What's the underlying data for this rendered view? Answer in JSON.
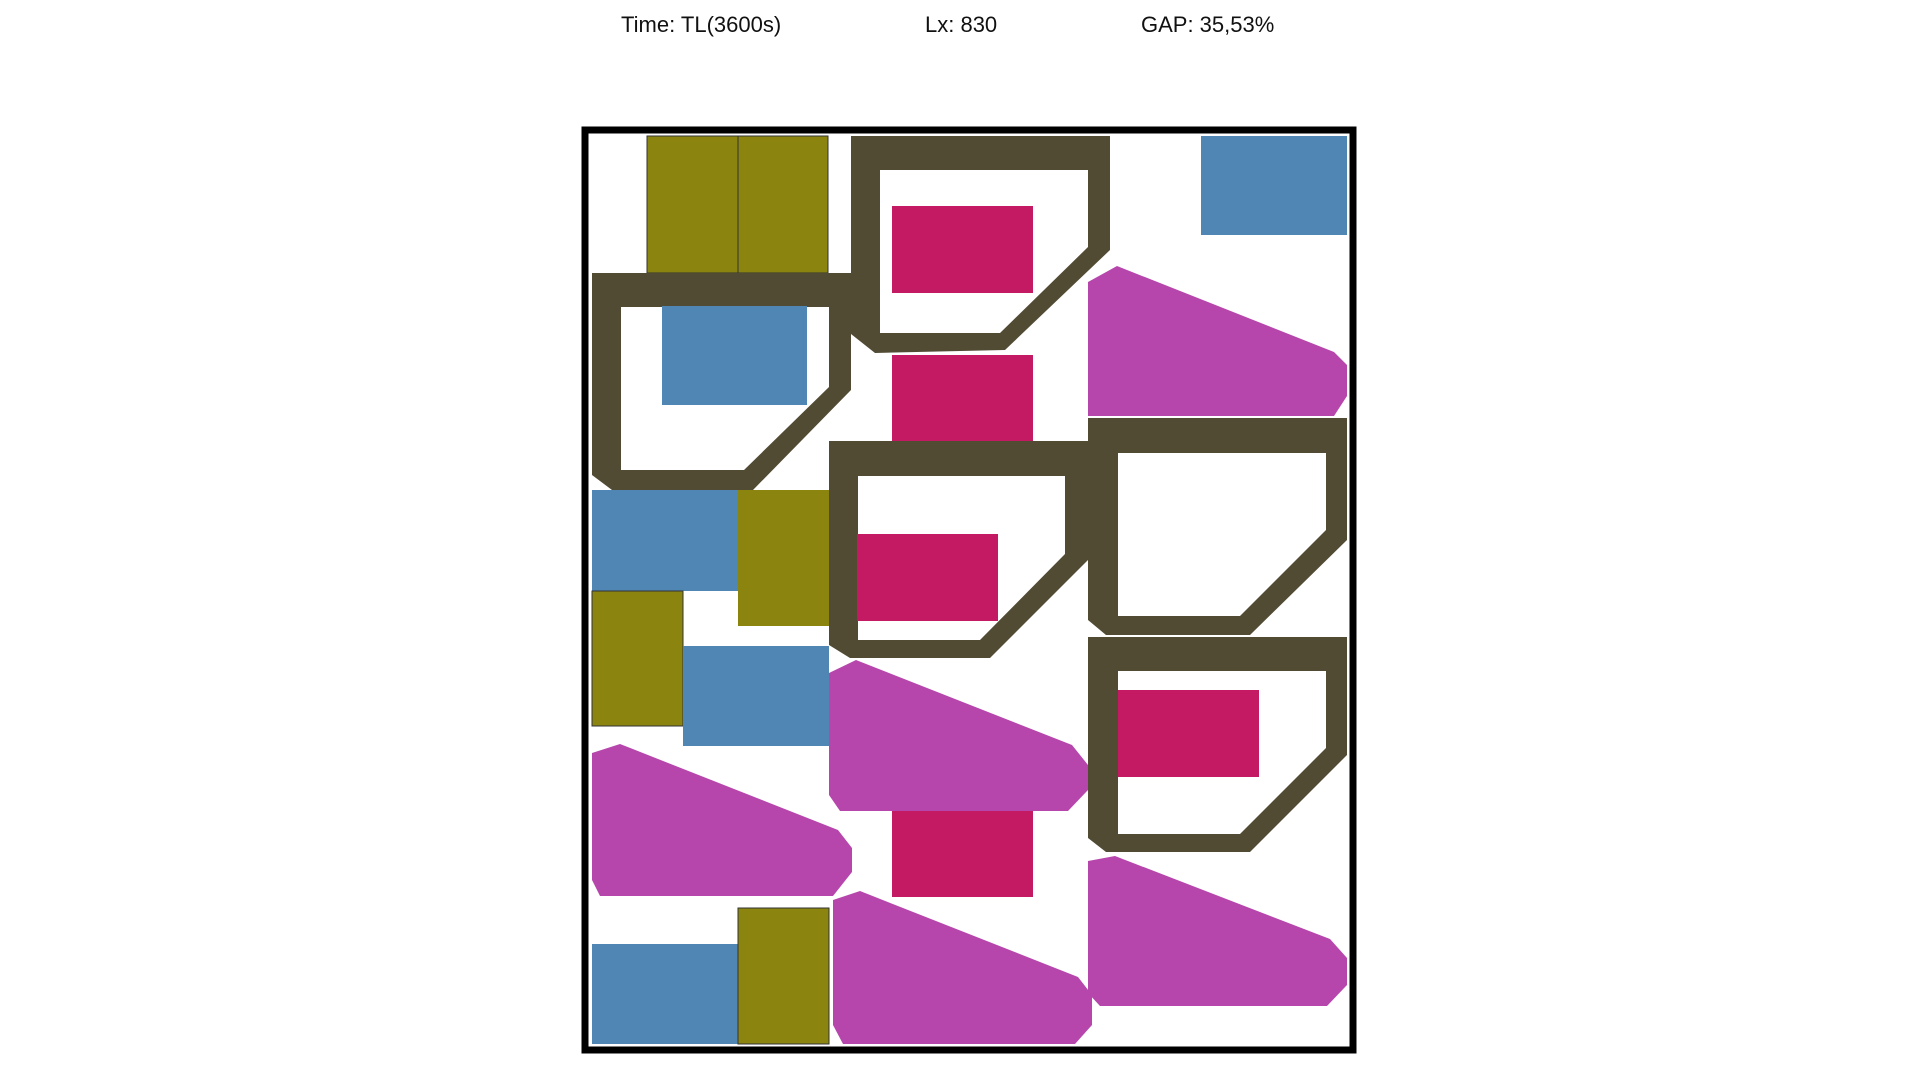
{
  "header": {
    "time_text": "Time: TL(3600s)",
    "lx_text": "Lx: 830",
    "gap_text": "GAP: 35,53%"
  },
  "colors": {
    "frame": "#000000",
    "olive": "#8b850f",
    "blue": "#4f86b4",
    "pink": "#c41a64",
    "purple": "#b746ac",
    "dark": "#514b34",
    "background": "#ffffff"
  },
  "pieces": [
    {
      "kind": "olive"
    },
    {
      "kind": "olive"
    },
    {
      "kind": "blue"
    },
    {
      "kind": "dark"
    },
    {
      "kind": "pink"
    },
    {
      "kind": "dark"
    },
    {
      "kind": "blue"
    },
    {
      "kind": "pink"
    },
    {
      "kind": "purple"
    },
    {
      "kind": "blue"
    },
    {
      "kind": "olive"
    },
    {
      "kind": "dark"
    },
    {
      "kind": "pink"
    },
    {
      "kind": "dark"
    },
    {
      "kind": "olive"
    },
    {
      "kind": "blue"
    },
    {
      "kind": "purple"
    },
    {
      "kind": "dark"
    },
    {
      "kind": "pink"
    },
    {
      "kind": "purple"
    },
    {
      "kind": "pink"
    },
    {
      "kind": "purple"
    },
    {
      "kind": "purple"
    },
    {
      "kind": "blue"
    },
    {
      "kind": "olive"
    }
  ]
}
